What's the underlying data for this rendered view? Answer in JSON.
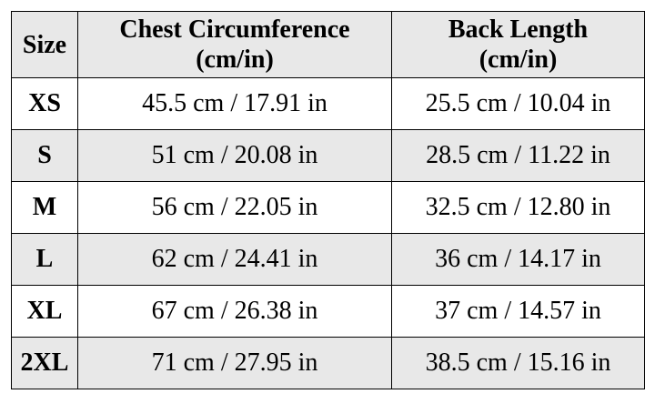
{
  "table": {
    "header": [
      {
        "label": "Size"
      },
      {
        "label": "Chest Circumference",
        "unit": "(cm/in)"
      },
      {
        "label": "Back Length",
        "unit": "(cm/in)"
      }
    ],
    "rows": [
      [
        "XS",
        "45.5 cm / 17.91 in",
        "25.5 cm / 10.04 in"
      ],
      [
        "S",
        "51 cm / 20.08 in",
        "28.5 cm / 11.22 in"
      ],
      [
        "M",
        "56 cm / 22.05 in",
        "32.5 cm / 12.80 in"
      ],
      [
        "L",
        "62 cm / 24.41 in",
        "36 cm / 14.17 in"
      ],
      [
        "XL",
        "67 cm / 26.38 in",
        "37 cm / 14.57 in"
      ],
      [
        "2XL",
        "71 cm / 27.95 in",
        "38.5 cm / 15.16 in"
      ]
    ]
  }
}
